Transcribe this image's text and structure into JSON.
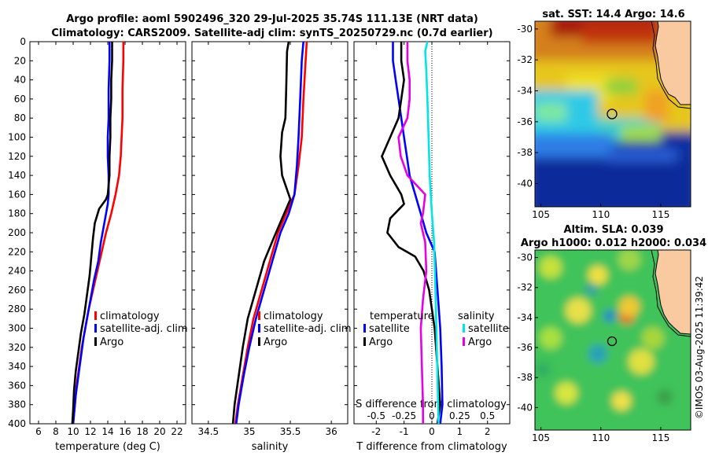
{
  "title_line1": "Argo profile: aoml 5902496_320 29-Jul-2025 35.74S 111.13E (NRT data)",
  "title_line2": "Climatology: CARS2009. Satellite-adj clim: synTS_20250729.nc (0.7d earlier)",
  "sst_title": "sat. SST: 14.4 Argo: 14.6",
  "sla_title1": "Altim. SLA: 0.039",
  "sla_title2": "Argo h1000: 0.012 h2000: 0.034",
  "credit": "©IMOS 03-Aug-2025 11:39:42",
  "colors": {
    "climatology": "#ff0000",
    "satellite": "#0000ff",
    "argo": "#000000",
    "sal_satellite": "#00e5e5",
    "sal_argo": "#e600e6",
    "land": "#f9c9a0"
  },
  "chart_data": [
    {
      "type": "line",
      "name": "temperature",
      "xlabel": "temperature (deg C)",
      "ylabel": "",
      "xlim": [
        5,
        23
      ],
      "ylim": [
        400,
        0
      ],
      "xticks": [
        "6",
        "8",
        "10",
        "12",
        "14",
        "16",
        "18",
        "20",
        "22"
      ],
      "xtick_values": [
        6,
        8,
        10,
        12,
        14,
        16,
        18,
        20,
        22
      ],
      "yticks": [
        "0",
        "20",
        "40",
        "60",
        "80",
        "100",
        "120",
        "140",
        "160",
        "180",
        "200",
        "220",
        "240",
        "260",
        "280",
        "300",
        "320",
        "340",
        "360",
        "380",
        "400"
      ],
      "ytick_values": [
        0,
        20,
        40,
        60,
        80,
        100,
        120,
        140,
        160,
        180,
        200,
        220,
        240,
        260,
        280,
        300,
        320,
        340,
        360,
        380,
        400
      ],
      "legend": [
        "climatology",
        "satellite-adj. clim",
        "Argo"
      ],
      "series": [
        {
          "name": "climatology",
          "color": "#ff0000",
          "points": [
            [
              15.8,
              0
            ],
            [
              15.8,
              20
            ],
            [
              15.7,
              50
            ],
            [
              15.7,
              80
            ],
            [
              15.6,
              100
            ],
            [
              15.5,
              120
            ],
            [
              15.3,
              140
            ],
            [
              14.9,
              160
            ],
            [
              14.4,
              180
            ],
            [
              13.8,
              200
            ],
            [
              13.3,
              220
            ],
            [
              12.8,
              240
            ],
            [
              12.3,
              260
            ],
            [
              11.8,
              280
            ],
            [
              11.4,
              300
            ],
            [
              11.0,
              320
            ],
            [
              10.7,
              340
            ],
            [
              10.4,
              360
            ],
            [
              10.2,
              380
            ],
            [
              10.0,
              400
            ]
          ]
        },
        {
          "name": "satellite-adj. clim",
          "color": "#0000ff",
          "points": [
            [
              14.2,
              0
            ],
            [
              14.2,
              20
            ],
            [
              14.1,
              50
            ],
            [
              14.1,
              80
            ],
            [
              14.0,
              100
            ],
            [
              14.0,
              120
            ],
            [
              14.1,
              140
            ],
            [
              14.1,
              160
            ],
            [
              14.0,
              170
            ],
            [
              13.6,
              190
            ],
            [
              13.2,
              210
            ],
            [
              12.9,
              230
            ],
            [
              12.4,
              250
            ],
            [
              12.0,
              270
            ],
            [
              11.6,
              290
            ],
            [
              11.2,
              310
            ],
            [
              10.9,
              330
            ],
            [
              10.6,
              350
            ],
            [
              10.3,
              370
            ],
            [
              10.1,
              390
            ],
            [
              10.0,
              400
            ]
          ]
        },
        {
          "name": "Argo",
          "color": "#000000",
          "points": [
            [
              14.5,
              0
            ],
            [
              14.5,
              20
            ],
            [
              14.4,
              40
            ],
            [
              14.4,
              60
            ],
            [
              14.3,
              80
            ],
            [
              14.3,
              100
            ],
            [
              14.2,
              120
            ],
            [
              14.2,
              140
            ],
            [
              14.0,
              160
            ],
            [
              13.8,
              165
            ],
            [
              13.0,
              175
            ],
            [
              12.5,
              190
            ],
            [
              12.3,
              205
            ],
            [
              12.1,
              225
            ],
            [
              11.9,
              245
            ],
            [
              11.6,
              265
            ],
            [
              11.3,
              285
            ],
            [
              10.9,
              305
            ],
            [
              10.6,
              325
            ],
            [
              10.3,
              345
            ],
            [
              10.1,
              365
            ],
            [
              10.0,
              385
            ],
            [
              9.9,
              400
            ]
          ]
        }
      ]
    },
    {
      "type": "line",
      "name": "salinity",
      "xlabel": "salinity",
      "xlim": [
        34.3,
        36.2
      ],
      "ylim": [
        400,
        0
      ],
      "xticks": [
        "34.5",
        "35",
        "35.5",
        "36"
      ],
      "xtick_values": [
        34.5,
        35,
        35.5,
        36
      ],
      "legend": [
        "climatology",
        "satellite-adj. clim",
        "Argo"
      ],
      "series": [
        {
          "name": "climatology",
          "color": "#ff0000",
          "points": [
            [
              35.7,
              0
            ],
            [
              35.68,
              30
            ],
            [
              35.66,
              60
            ],
            [
              35.64,
              100
            ],
            [
              35.6,
              130
            ],
            [
              35.55,
              160
            ],
            [
              35.45,
              180
            ],
            [
              35.35,
              200
            ],
            [
              35.25,
              230
            ],
            [
              35.15,
              260
            ],
            [
              35.05,
              290
            ],
            [
              34.98,
              320
            ],
            [
              34.92,
              350
            ],
            [
              34.86,
              380
            ],
            [
              34.83,
              400
            ]
          ]
        },
        {
          "name": "satellite-adj. clim",
          "color": "#0000ff",
          "points": [
            [
              35.66,
              0
            ],
            [
              35.64,
              20
            ],
            [
              35.62,
              60
            ],
            [
              35.6,
              100
            ],
            [
              35.58,
              130
            ],
            [
              35.55,
              160
            ],
            [
              35.48,
              180
            ],
            [
              35.38,
              200
            ],
            [
              35.28,
              230
            ],
            [
              35.18,
              260
            ],
            [
              35.08,
              290
            ],
            [
              35.0,
              320
            ],
            [
              34.93,
              350
            ],
            [
              34.87,
              380
            ],
            [
              34.84,
              400
            ]
          ]
        },
        {
          "name": "Argo",
          "color": "#000000",
          "points": [
            [
              35.48,
              0
            ],
            [
              35.46,
              10
            ],
            [
              35.45,
              50
            ],
            [
              35.44,
              80
            ],
            [
              35.4,
              95
            ],
            [
              35.38,
              120
            ],
            [
              35.4,
              140
            ],
            [
              35.5,
              165
            ],
            [
              35.4,
              185
            ],
            [
              35.3,
              205
            ],
            [
              35.18,
              230
            ],
            [
              35.08,
              260
            ],
            [
              34.98,
              290
            ],
            [
              34.92,
              320
            ],
            [
              34.87,
              350
            ],
            [
              34.82,
              380
            ],
            [
              34.8,
              400
            ]
          ]
        }
      ]
    },
    {
      "type": "line",
      "name": "differences",
      "xlabel": "T difference from climatology",
      "xlabel_top": "S difference from climatology",
      "xlim": [
        -2.8,
        2.8
      ],
      "ylim": [
        400,
        0
      ],
      "xticks": [
        "-2",
        "-1",
        "0",
        "1",
        "2"
      ],
      "xtick_values": [
        -2,
        -1,
        0,
        1,
        2
      ],
      "sticks": [
        "-0.5",
        "-0.25",
        "0",
        "0.25",
        "0.5"
      ],
      "stick_values": [
        -0.5,
        -0.25,
        0,
        0.25,
        0.5
      ],
      "s_scale": 4,
      "legend_temperature": "temperature",
      "legend_salinity": "salinity",
      "legend": [
        "satellite",
        "Argo",
        "satellite",
        "Argo"
      ],
      "series": [
        {
          "name": "T satellite",
          "color": "#0000ff",
          "points": [
            [
              -1.4,
              0
            ],
            [
              -1.4,
              20
            ],
            [
              -1.3,
              40
            ],
            [
              -1.2,
              60
            ],
            [
              -1.1,
              80
            ],
            [
              -1.0,
              100
            ],
            [
              -0.9,
              120
            ],
            [
              -0.8,
              140
            ],
            [
              -0.6,
              160
            ],
            [
              -0.4,
              180
            ],
            [
              -0.2,
              200
            ],
            [
              0.1,
              220
            ],
            [
              0.2,
              260
            ],
            [
              0.3,
              300
            ],
            [
              0.35,
              340
            ],
            [
              0.38,
              380
            ],
            [
              0.3,
              400
            ]
          ]
        },
        {
          "name": "T Argo",
          "color": "#000000",
          "points": [
            [
              -1.1,
              0
            ],
            [
              -1.1,
              20
            ],
            [
              -1.0,
              40
            ],
            [
              -1.1,
              60
            ],
            [
              -1.2,
              80
            ],
            [
              -1.5,
              100
            ],
            [
              -1.8,
              120
            ],
            [
              -1.5,
              140
            ],
            [
              -1.1,
              160
            ],
            [
              -1.0,
              170
            ],
            [
              -1.5,
              185
            ],
            [
              -1.6,
              200
            ],
            [
              -1.2,
              215
            ],
            [
              -0.6,
              225
            ],
            [
              -0.3,
              240
            ],
            [
              -0.1,
              260
            ],
            [
              0.0,
              280
            ],
            [
              0.1,
              300
            ],
            [
              0.2,
              340
            ],
            [
              0.3,
              380
            ],
            [
              0.2,
              400
            ]
          ]
        },
        {
          "name": "S satellite",
          "color": "#00e5e5",
          "points": [
            [
              -0.04,
              0
            ],
            [
              -0.06,
              10
            ],
            [
              -0.05,
              30
            ],
            [
              -0.04,
              60
            ],
            [
              -0.03,
              100
            ],
            [
              -0.02,
              140
            ],
            [
              0.0,
              180
            ],
            [
              0.02,
              210
            ],
            [
              0.03,
              250
            ],
            [
              0.04,
              300
            ],
            [
              0.05,
              350
            ],
            [
              0.06,
              400
            ]
          ]
        },
        {
          "name": "S Argo",
          "color": "#e600e6",
          "points": [
            [
              -0.22,
              0
            ],
            [
              -0.22,
              20
            ],
            [
              -0.2,
              40
            ],
            [
              -0.2,
              60
            ],
            [
              -0.22,
              80
            ],
            [
              -0.3,
              100
            ],
            [
              -0.28,
              120
            ],
            [
              -0.22,
              140
            ],
            [
              -0.06,
              160
            ],
            [
              -0.08,
              180
            ],
            [
              -0.1,
              190
            ],
            [
              -0.06,
              210
            ],
            [
              -0.05,
              240
            ],
            [
              -0.08,
              270
            ],
            [
              -0.1,
              300
            ],
            [
              -0.09,
              340
            ],
            [
              -0.08,
              380
            ],
            [
              -0.08,
              400
            ]
          ]
        }
      ]
    },
    {
      "type": "heatmap",
      "name": "sat. SST map",
      "title": "sat. SST: 14.4 Argo: 14.6",
      "xlim": [
        104.5,
        117.5
      ],
      "ylim": [
        -41.5,
        -29.5
      ],
      "xticks": [
        "105",
        "110",
        "115"
      ],
      "xtick_values": [
        105,
        110,
        115
      ],
      "yticks": [
        "-30",
        "-32",
        "-34",
        "-36",
        "-38",
        "-40"
      ],
      "ytick_values": [
        -30,
        -32,
        -34,
        -36,
        -38,
        -40
      ],
      "float_position": [
        111.13,
        -35.74
      ]
    },
    {
      "type": "heatmap",
      "name": "Altim. SLA map",
      "title": "Altim. SLA: 0.039",
      "xlim": [
        104.5,
        117.5
      ],
      "ylim": [
        -41.5,
        -29.5
      ],
      "xticks": [
        "105",
        "110",
        "115"
      ],
      "xtick_values": [
        105,
        110,
        115
      ],
      "yticks": [
        "-30",
        "-32",
        "-34",
        "-36",
        "-38",
        "-40"
      ],
      "ytick_values": [
        -30,
        -32,
        -34,
        -36,
        -38,
        -40
      ],
      "float_position": [
        111.13,
        -35.74
      ]
    }
  ]
}
